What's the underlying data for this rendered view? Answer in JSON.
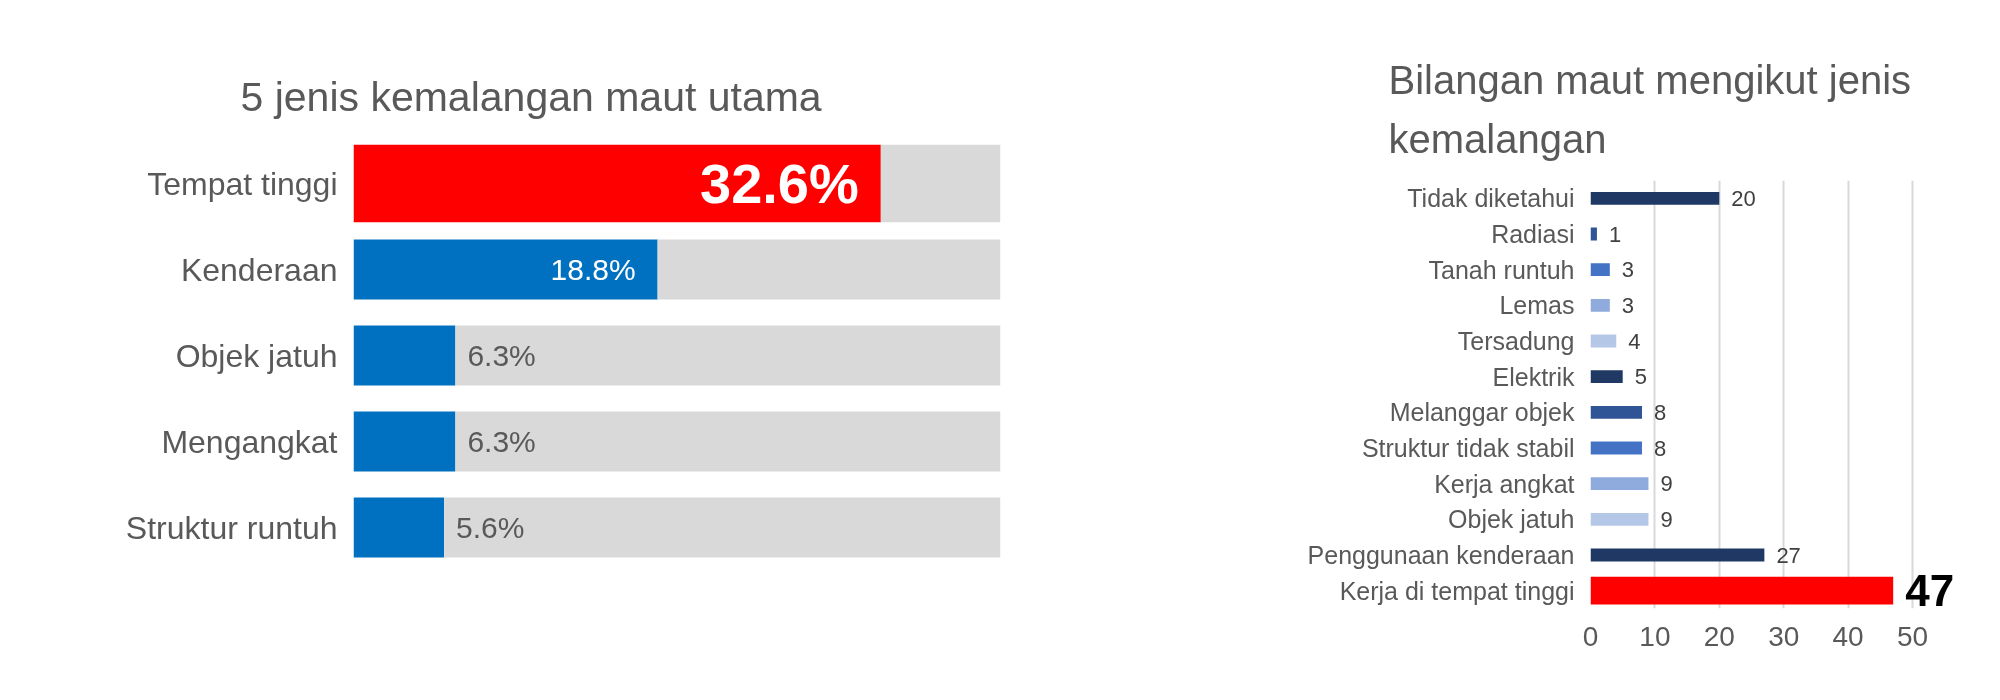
{
  "chart_data": [
    {
      "type": "bar",
      "orientation": "horizontal",
      "stacked": true,
      "title": "5 jenis kemalangan maut utama",
      "categories": [
        "Tempat tinggi",
        "Kenderaan",
        "Objek jatuh",
        "Mengangkat",
        "Struktur runtuh"
      ],
      "series": [
        {
          "colors": [
            "#ff0000",
            "#0070c0",
            "#0070c0",
            "#0070c0",
            "#0070c0"
          ],
          "values": [
            32.6,
            18.8,
            6.3,
            6.3,
            5.6
          ],
          "value_labels": [
            "32.6%",
            "18.8%",
            "6.3%",
            "6.3%",
            "5.6%"
          ]
        },
        {
          "color": "#d9d9d9",
          "values": [
            7.4,
            21.2,
            33.7,
            33.7,
            34.4
          ]
        }
      ],
      "xlim": [
        0,
        40
      ],
      "tick_labels": "y"
    },
    {
      "type": "bar",
      "orientation": "horizontal",
      "title": "Bilangan maut mengikut jenis kemalangan",
      "categories": [
        "Tidak diketahui",
        "Radiasi",
        "Tanah runtuh",
        "Lemas",
        "Tersadung",
        "Elektrik",
        "Melanggar objek",
        "Struktur tidak stabil",
        "Kerja angkat",
        "Objek jatuh",
        "Penggunaan kenderaan",
        "Kerja di tempat tinggi"
      ],
      "values": [
        20,
        1,
        3,
        3,
        4,
        5,
        8,
        8,
        9,
        9,
        27,
        47
      ],
      "colors": [
        "#203864",
        "#2f5597",
        "#4472c4",
        "#8faadc",
        "#b4c7e7",
        "#203864",
        "#2f5597",
        "#4472c4",
        "#8faadc",
        "#b4c7e7",
        "#203864",
        "#ff0000"
      ],
      "xlim": [
        0,
        50
      ],
      "xticks": [
        0,
        10,
        20,
        30,
        40,
        50
      ],
      "grid": "x",
      "data_labels": true
    }
  ]
}
